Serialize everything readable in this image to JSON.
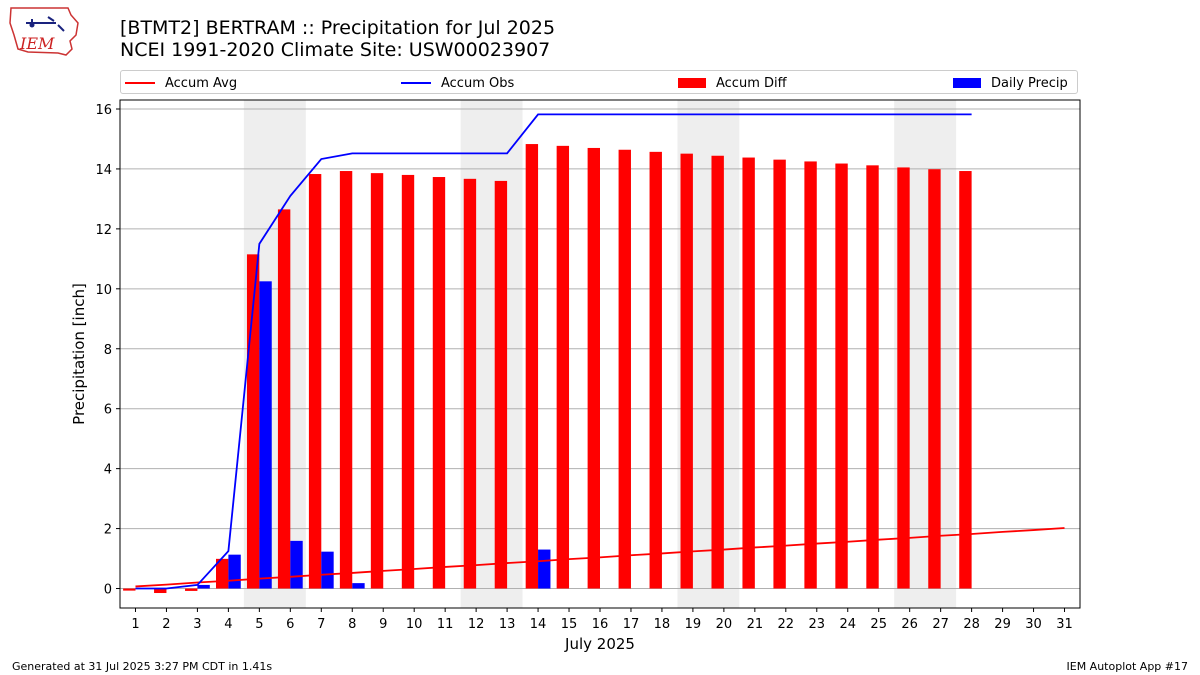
{
  "title": {
    "line1": "[BTMT2] BERTRAM :: Precipitation for Jul 2025",
    "line2": "NCEI 1991-2020 Climate Site: USW00023907"
  },
  "logo": {
    "text": "IEM"
  },
  "legend": {
    "items": [
      {
        "label": "Accum Avg",
        "color": "#ff0000",
        "kind": "line"
      },
      {
        "label": "Accum Obs",
        "color": "#0000ff",
        "kind": "line"
      },
      {
        "label": "Accum Diff",
        "color": "#ff0000",
        "kind": "bar"
      },
      {
        "label": "Daily Precip",
        "color": "#0000ff",
        "kind": "bar"
      }
    ]
  },
  "chart_data": {
    "type": "bar",
    "title": "[BTMT2] BERTRAM :: Precipitation for Jul 2025",
    "xlabel": "July 2025",
    "ylabel": "Precipitation [inch]",
    "ylim": [
      -0.65,
      16.3
    ],
    "yticks": [
      0,
      2,
      4,
      6,
      8,
      10,
      12,
      14,
      16
    ],
    "xlim": [
      0.5,
      31.5
    ],
    "categories": [
      "1",
      "2",
      "3",
      "4",
      "5",
      "6",
      "7",
      "8",
      "9",
      "10",
      "11",
      "12",
      "13",
      "14",
      "15",
      "16",
      "17",
      "18",
      "19",
      "20",
      "21",
      "22",
      "23",
      "24",
      "25",
      "26",
      "27",
      "28",
      "29",
      "30",
      "31"
    ],
    "weekend_shading": [
      [
        4.5,
        6.5
      ],
      [
        11.5,
        13.5
      ],
      [
        18.5,
        20.5
      ],
      [
        25.5,
        27.5
      ]
    ],
    "grid": "horizontal",
    "series": [
      {
        "name": "Accum Avg",
        "type": "line",
        "color": "#ff0000",
        "x": [
          1,
          2,
          3,
          4,
          5,
          6,
          7,
          8,
          9,
          10,
          11,
          12,
          13,
          14,
          15,
          16,
          17,
          18,
          19,
          20,
          21,
          22,
          23,
          24,
          25,
          26,
          27,
          28,
          29,
          30,
          31
        ],
        "values": [
          0.07,
          0.13,
          0.2,
          0.26,
          0.33,
          0.39,
          0.46,
          0.52,
          0.59,
          0.65,
          0.72,
          0.78,
          0.85,
          0.91,
          0.98,
          1.04,
          1.11,
          1.17,
          1.24,
          1.3,
          1.37,
          1.43,
          1.5,
          1.56,
          1.63,
          1.69,
          1.76,
          1.82,
          1.89,
          1.95,
          2.02
        ]
      },
      {
        "name": "Accum Obs",
        "type": "line",
        "color": "#0000ff",
        "x": [
          1,
          2,
          3,
          4,
          5,
          6,
          7,
          8,
          9,
          10,
          11,
          12,
          13,
          14,
          15,
          16,
          17,
          18,
          19,
          20,
          21,
          22,
          23,
          24,
          25,
          26,
          27,
          28
        ],
        "values": [
          0.0,
          0.0,
          0.12,
          1.25,
          11.5,
          13.1,
          14.33,
          14.52,
          14.52,
          14.52,
          14.52,
          14.52,
          14.52,
          15.82,
          15.82,
          15.82,
          15.82,
          15.82,
          15.82,
          15.82,
          15.82,
          15.82,
          15.82,
          15.82,
          15.82,
          15.82,
          15.82,
          15.82
        ]
      },
      {
        "name": "Accum Diff",
        "type": "bar",
        "color": "#ff0000",
        "x": [
          1,
          2,
          3,
          4,
          5,
          6,
          7,
          8,
          9,
          10,
          11,
          12,
          13,
          14,
          15,
          16,
          17,
          18,
          19,
          20,
          21,
          22,
          23,
          24,
          25,
          26,
          27,
          28
        ],
        "values": [
          -0.07,
          -0.15,
          -0.08,
          0.99,
          11.15,
          12.65,
          13.83,
          13.93,
          13.86,
          13.8,
          13.73,
          13.67,
          13.6,
          14.83,
          14.77,
          14.7,
          14.64,
          14.57,
          14.51,
          14.44,
          14.38,
          14.31,
          14.25,
          14.18,
          14.12,
          14.05,
          13.99,
          13.93
        ]
      },
      {
        "name": "Daily Precip",
        "type": "bar",
        "color": "#0000ff",
        "x": [
          1,
          2,
          3,
          4,
          5,
          6,
          7,
          8,
          9,
          10,
          11,
          12,
          13,
          14,
          15,
          16,
          17,
          18,
          19,
          20,
          21,
          22,
          23,
          24,
          25,
          26,
          27,
          28
        ],
        "values": [
          0,
          0,
          0.12,
          1.13,
          10.25,
          1.59,
          1.23,
          0.18,
          0,
          0,
          0,
          0,
          0,
          1.3,
          0,
          0,
          0,
          0,
          0,
          0,
          0,
          0,
          0,
          0,
          0,
          0,
          0,
          0
        ]
      }
    ]
  },
  "footer": {
    "left": "Generated at 31 Jul 2025 3:27 PM CDT in 1.41s",
    "right": "IEM Autoplot App #17"
  }
}
